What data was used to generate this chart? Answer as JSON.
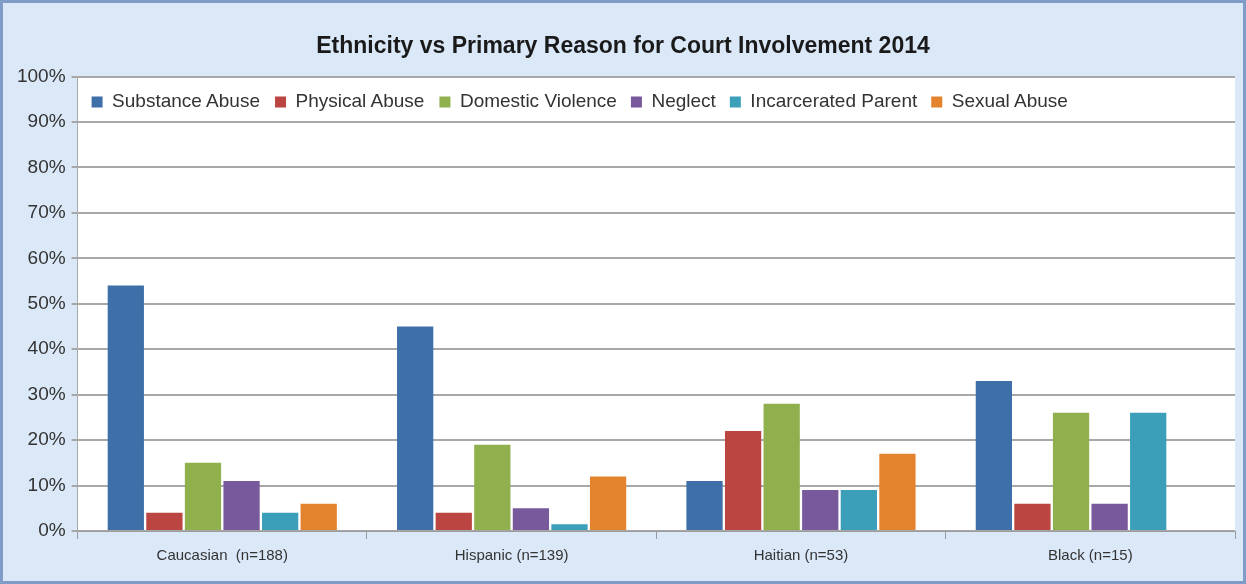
{
  "chart_data": {
    "type": "bar",
    "title": "Ethnicity vs Primary Reason for Court Involvement 2014",
    "categories": [
      "Caucasian  (n=188)",
      "Hispanic (n=139)",
      "Haitian (n=53)",
      "Black (n=15)"
    ],
    "series": [
      {
        "name": "Substance Abuse",
        "color": "#3f6fa9",
        "values": [
          54,
          45,
          11,
          33
        ]
      },
      {
        "name": "Physical Abuse",
        "color": "#bb4540",
        "values": [
          4,
          4,
          22,
          6
        ]
      },
      {
        "name": "Domestic Violence",
        "color": "#8fb04c",
        "values": [
          15,
          19,
          28,
          26
        ]
      },
      {
        "name": "Neglect",
        "color": "#77599c",
        "values": [
          11,
          5,
          9,
          6
        ]
      },
      {
        "name": "Incarcerated Parent",
        "color": "#3c9fba",
        "values": [
          4,
          1.5,
          9,
          26
        ]
      },
      {
        "name": "Sexual Abuse",
        "color": "#e4832e",
        "values": [
          6,
          12,
          17,
          0
        ]
      }
    ],
    "ylim": [
      0,
      100
    ],
    "yticks": [
      {
        "value": 0,
        "label": "0%"
      },
      {
        "value": 10,
        "label": "10%"
      },
      {
        "value": 20,
        "label": "20%"
      },
      {
        "value": 30,
        "label": "30%"
      },
      {
        "value": 40,
        "label": "40%"
      },
      {
        "value": 50,
        "label": "50%"
      },
      {
        "value": 60,
        "label": "60%"
      },
      {
        "value": 70,
        "label": "70%"
      },
      {
        "value": 80,
        "label": "80%"
      },
      {
        "value": 90,
        "label": "90%"
      },
      {
        "value": 100,
        "label": "100%"
      }
    ],
    "grid": "y",
    "legend": "top left"
  }
}
